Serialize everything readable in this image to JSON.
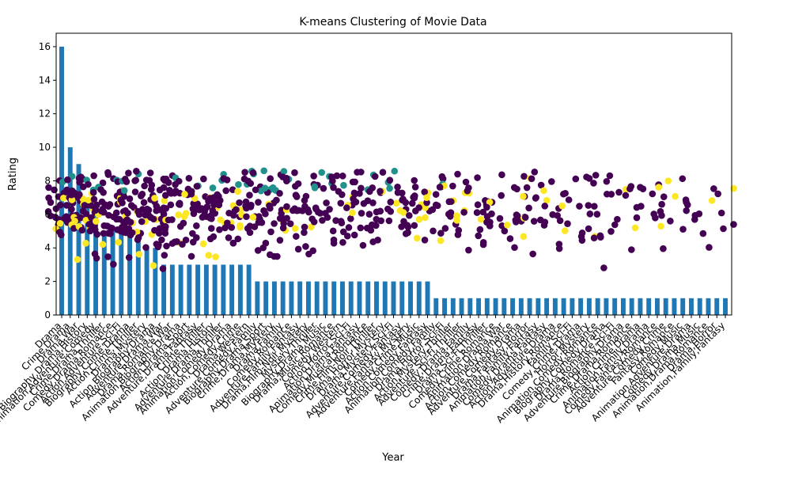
{
  "chart_data": {
    "type": "bar+scatter",
    "title": "K-means Clustering of Movie Data",
    "xlabel": "Year",
    "ylabel": "Rating",
    "ylim": [
      0,
      16.8
    ],
    "y_ticks": [
      0,
      2,
      4,
      6,
      8,
      10,
      12,
      14,
      16
    ],
    "grid": false,
    "bar_color": "#1f77b4",
    "cluster_colors": [
      "#440154",
      "#21918c",
      "#fde725"
    ],
    "genre_bars": {
      "categories": [
        "Drama",
        "Crime,Drama",
        "Drama,War",
        "Biography,Drama,History",
        "Animation,Adventure,Comedy",
        "Crime,Drama,Thriller",
        "Comedy,Drama,Romance",
        "Action,Adventure,Sci-Fi",
        "Biography,Crime,Drama",
        "Action,Crime,Thriller",
        "Drama,Mystery",
        "Action,Biography,Drama",
        "Adventure,Drama,War",
        "Drama,Romance,War",
        "Animation,Biography,Drama",
        "Action,Drama,Sport",
        "Adventure,Drama,Fantasy",
        "Crime,Thriller",
        "Action,Drama,History",
        "Adventure,Drama,Thriller",
        "Animation,Comedy,Drama",
        "Action,Comedy,Crime",
        "Drama,Western",
        "Adventure,Comedy,Family",
        "Biography,Drama,Sport",
        "Crime,Drama,Mystery",
        "Drama,Family",
        "Comedy,Romance",
        "Adventure,Family,Fantasy",
        "Drama,Film-Noir,Mystery",
        "Mystery,Thriller",
        "Biography,Drama,Music",
        "Drama,Music,Romance",
        "Comedy,Western",
        "Action,Horror,Sci-Fi",
        "Animation,Drama,Fantasy",
        "Comedy,Musical,Romance",
        "Crime,Film-Noir,Thriller",
        "Drama,Horror,Mystery",
        "Drama,Mystery,Sci-Fi",
        "Adventure,Comedy,Fantasy",
        "Adventure,Fantasy,Mystery",
        "Comedy,Crime,Music",
        "Action,Comedy,Fantasy",
        "Animation,Comedy,Family",
        "Drama,Horror,Sci-Fi",
        "Action,Mystery,Thriller",
        "Adventure,Sci-Fi,Thriller",
        "Comedy,Drama,Family",
        "Crime,Drama,Fantasy",
        "Drama,Sci-Fi,Thriller",
        "Comedy,Crime,Romance",
        "Animation,Drama,War",
        "Action,Comedy,Romance",
        "Adventure,Comedy,Drama",
        "Drama,Fantasy,Horror",
        "Animation,Family,Fantasy",
        "Comedy,Drama,Fantasy",
        "Action,Adventure,Drama",
        "Drama,History,Romance",
        "Family,Sci-Fi",
        "Comedy,Crime,Drama",
        "Horror,Mystery",
        "Animation,Comedy,Romance",
        "Biography,Comedy,Drama",
        "Drama,Romance,Sci-Fi",
        "Adventure,Biography,Drama",
        "Crime,Drama,Romance",
        "Action,Crime,Drama",
        "Animation,Family,Drama",
        "Comedy,Fantasy,Romance",
        "Adventure,Comedy,Crime",
        "Fantasy,Romance",
        "Comedy,Music",
        "Animation,Adventure,Drama",
        "Comedy,Drama,Music",
        "Animation,Drama,Romance",
        "Drama,Horror",
        "Animation,Family,Fantasy"
      ],
      "values": [
        16,
        10,
        9,
        7,
        6,
        5,
        5,
        5,
        5,
        5,
        4,
        4,
        3,
        3,
        3,
        3,
        3,
        3,
        3,
        3,
        3,
        3,
        3,
        2,
        2,
        2,
        2,
        2,
        2,
        2,
        2,
        2,
        2,
        2,
        2,
        2,
        2,
        2,
        2,
        2,
        2,
        2,
        2,
        2,
        1,
        1,
        1,
        1,
        1,
        1,
        1,
        1,
        1,
        1,
        1,
        1,
        1,
        1,
        1,
        1,
        1,
        1,
        1,
        1,
        1,
        1,
        1,
        1,
        1,
        1,
        1,
        1,
        1,
        1,
        1,
        1,
        1,
        1,
        1
      ]
    },
    "scatter_points_per_category": [
      24,
      22,
      20,
      20,
      18,
      18,
      17,
      17,
      17,
      17,
      16,
      16,
      15,
      15,
      14,
      14,
      14,
      14,
      13,
      13,
      13,
      13,
      12,
      12,
      12,
      11,
      11,
      11,
      11,
      10,
      10,
      10,
      10,
      10,
      10,
      9,
      9,
      9,
      9,
      9,
      9,
      8,
      8,
      8,
      8,
      8,
      7,
      7,
      7,
      7,
      7,
      7,
      6,
      6,
      6,
      6,
      6,
      6,
      5,
      5,
      5,
      5,
      5,
      5,
      5,
      4,
      4,
      4,
      4,
      4,
      4,
      4,
      3,
      3,
      3,
      3,
      3,
      3,
      3
    ],
    "rating_range": [
      1.3,
      8.6
    ]
  }
}
